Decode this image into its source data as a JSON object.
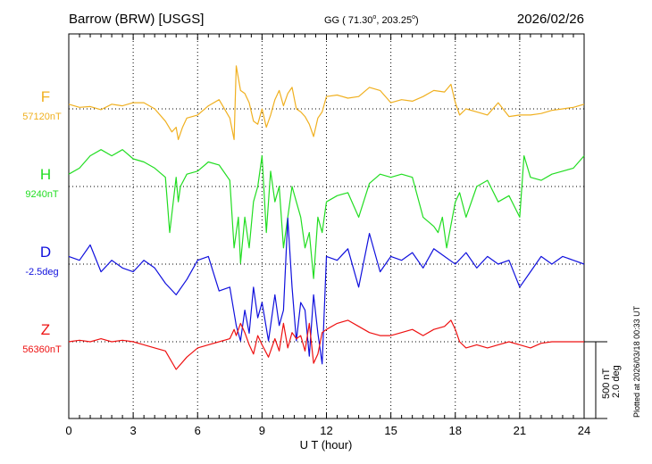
{
  "header": {
    "station": "Barrow (BRW)  [USGS]",
    "coords_prefix": "GG ( 71.30",
    "coords_mid": ", 203.25",
    "coords_suffix": ")",
    "degree_mark": "o",
    "date": "2026/02/26"
  },
  "footer": {
    "plotted_note": "Plotted at 2026/03/18 00:33 UT",
    "scale_nt": "500 nT",
    "scale_deg": "2.0 deg"
  },
  "chart_data": {
    "type": "line",
    "xlabel": "U T (hour)",
    "xlim": [
      0,
      24
    ],
    "xticks": [
      "0",
      "3",
      "6",
      "9",
      "12",
      "15",
      "18",
      "21",
      "24"
    ],
    "scale": {
      "nT_per_division": 500,
      "deg_per_division": 2.0
    },
    "series": [
      {
        "name": "F",
        "baseline_label": "57120nT",
        "color": "#f0b020",
        "baseline_value": 57120,
        "unit": "nT",
        "x": [
          0,
          0.5,
          1,
          1.5,
          2,
          2.5,
          3,
          3.5,
          4,
          4.5,
          4.8,
          5,
          5.1,
          5.3,
          5.5,
          6,
          6.5,
          7,
          7.5,
          7.7,
          7.8,
          7.9,
          8,
          8.2,
          8.4,
          8.6,
          8.8,
          9,
          9.2,
          9.4,
          9.6,
          9.8,
          10,
          10.2,
          10.4,
          10.6,
          10.8,
          11,
          11.2,
          11.4,
          11.6,
          11.8,
          12,
          12.5,
          13,
          13.5,
          14,
          14.5,
          15,
          15.5,
          16,
          16.5,
          17,
          17.5,
          17.8,
          18,
          18.2,
          18.5,
          19,
          19.5,
          20,
          20.5,
          21,
          21.5,
          22,
          22.5,
          23,
          23.5,
          24
        ],
        "y": [
          30,
          10,
          15,
          -5,
          30,
          20,
          40,
          40,
          0,
          -80,
          -150,
          -120,
          -200,
          -120,
          -60,
          -40,
          20,
          60,
          -60,
          -200,
          280,
          200,
          120,
          100,
          40,
          -80,
          -100,
          0,
          -120,
          -40,
          60,
          120,
          20,
          100,
          140,
          0,
          -20,
          -50,
          -100,
          -180,
          -60,
          -20,
          80,
          90,
          70,
          80,
          140,
          120,
          40,
          60,
          50,
          80,
          120,
          110,
          160,
          40,
          -40,
          0,
          -20,
          -40,
          40,
          -50,
          -40,
          -40,
          -30,
          -10,
          0,
          10,
          30
        ]
      },
      {
        "name": "H",
        "baseline_label": "9240nT",
        "color": "#22dd22",
        "baseline_value": 9240,
        "unit": "nT",
        "x": [
          0,
          0.5,
          1,
          1.5,
          2,
          2.5,
          3,
          3.5,
          4,
          4.5,
          4.6,
          4.7,
          5,
          5.1,
          5.2,
          5.5,
          6,
          6.5,
          7,
          7.5,
          7.7,
          7.8,
          7.9,
          8,
          8.2,
          8.4,
          8.6,
          8.8,
          9,
          9.2,
          9.4,
          9.6,
          9.8,
          10,
          10.2,
          10.4,
          10.6,
          10.8,
          11,
          11.2,
          11.4,
          11.6,
          11.8,
          12,
          12.5,
          13,
          13.5,
          14,
          14.5,
          15,
          15.5,
          16,
          16.5,
          17,
          17.2,
          17.4,
          17.6,
          18,
          18.2,
          18.5,
          19,
          19.5,
          20,
          20.5,
          21,
          21.2,
          21.5,
          22,
          22.5,
          23,
          23.5,
          24
        ],
        "y": [
          80,
          120,
          200,
          240,
          200,
          240,
          180,
          160,
          120,
          60,
          -120,
          -300,
          60,
          -100,
          0,
          80,
          100,
          160,
          140,
          40,
          -400,
          -300,
          -200,
          -500,
          -200,
          -400,
          -100,
          0,
          200,
          -300,
          100,
          -100,
          0,
          -400,
          -200,
          0,
          -100,
          -200,
          -400,
          -300,
          -600,
          -200,
          -300,
          -100,
          -60,
          -40,
          -200,
          20,
          80,
          60,
          80,
          60,
          -200,
          -260,
          -300,
          -200,
          -400,
          -100,
          -40,
          -200,
          0,
          40,
          -100,
          -60,
          -200,
          200,
          60,
          40,
          80,
          100,
          120,
          200
        ]
      },
      {
        "name": "D",
        "baseline_label": "-2.5deg",
        "color": "#1010dd",
        "baseline_value": -2.5,
        "unit": "deg",
        "x": [
          0,
          0.5,
          1,
          1.5,
          2,
          2.5,
          3,
          3.5,
          4,
          4.5,
          5,
          5.5,
          6,
          6.5,
          7,
          7.5,
          7.8,
          8,
          8.2,
          8.4,
          8.6,
          8.8,
          9,
          9.3,
          9.6,
          9.8,
          10,
          10.2,
          10.4,
          10.6,
          10.8,
          11,
          11.2,
          11.4,
          11.6,
          11.8,
          12,
          12.5,
          13,
          13.5,
          14,
          14.5,
          15,
          15.5,
          16,
          16.5,
          17,
          17.5,
          18,
          18.5,
          19,
          19.5,
          20,
          20.5,
          21,
          21.5,
          22,
          22.5,
          23,
          23.5,
          24
        ],
        "y": [
          0.2,
          0.1,
          0.5,
          -0.2,
          0.1,
          -0.1,
          -0.2,
          0.1,
          -0.1,
          -0.5,
          -0.8,
          -0.4,
          0.1,
          0.2,
          -0.7,
          -0.6,
          -1.6,
          -2.0,
          -1.2,
          -1.8,
          -0.6,
          -1.4,
          -1.0,
          -2.0,
          -0.8,
          -1.6,
          -1.2,
          1.2,
          -0.6,
          -2.0,
          -1.0,
          -1.2,
          -2.4,
          -0.8,
          -1.8,
          -2.6,
          0.2,
          0.1,
          0.4,
          -0.6,
          0.8,
          -0.2,
          0.2,
          0.1,
          0.3,
          -0.1,
          0.4,
          0.2,
          0.0,
          0.3,
          -0.1,
          0.2,
          0.0,
          0.1,
          -0.6,
          -0.2,
          0.2,
          0.0,
          0.2,
          0.1,
          0.0
        ]
      },
      {
        "name": "Z",
        "baseline_label": "56360nT",
        "color": "#ee1111",
        "baseline_value": 56360,
        "unit": "nT",
        "x": [
          0,
          0.5,
          1,
          1.5,
          2,
          2.5,
          3,
          3.5,
          4,
          4.5,
          5,
          5.5,
          6,
          6.5,
          7,
          7.5,
          7.7,
          7.8,
          8,
          8.2,
          8.4,
          8.6,
          8.8,
          9,
          9.3,
          9.6,
          9.8,
          10,
          10.2,
          10.4,
          10.6,
          10.8,
          11,
          11.2,
          11.4,
          11.6,
          11.8,
          12,
          12.5,
          13,
          13.5,
          14,
          14.5,
          15,
          15.5,
          16,
          16.5,
          17,
          17.5,
          17.8,
          18,
          18.2,
          18.5,
          19,
          19.5,
          20,
          20.5,
          21,
          21.5,
          22,
          22.5,
          23,
          23.5,
          24
        ],
        "y": [
          0,
          10,
          0,
          20,
          0,
          10,
          0,
          -20,
          -40,
          -60,
          -180,
          -100,
          -40,
          -20,
          0,
          20,
          80,
          40,
          120,
          60,
          -20,
          -80,
          40,
          -20,
          -100,
          20,
          -60,
          120,
          -40,
          60,
          20,
          40,
          -60,
          120,
          -140,
          -80,
          60,
          80,
          120,
          140,
          100,
          60,
          40,
          40,
          60,
          80,
          40,
          80,
          100,
          140,
          80,
          0,
          -40,
          -20,
          -40,
          -20,
          0,
          -20,
          -40,
          -10,
          0,
          0,
          0,
          0
        ]
      }
    ]
  }
}
